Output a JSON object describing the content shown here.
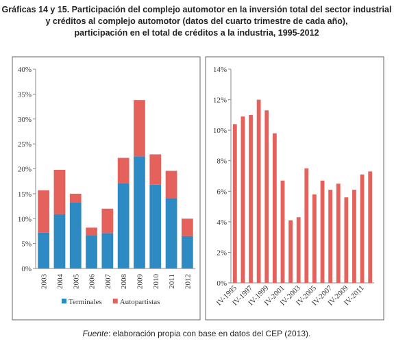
{
  "title": [
    "Gráficas 14 y 15. Participación del complejo automotor en la inversión total del sector industrial",
    "y créditos al complejo automotor (datos del cuarto trimestre de cada año),",
    "participación en el total de créditos a la industria, 1995-2012"
  ],
  "source_label": "Fuente",
  "source_text": ": elaboración propia con base en datos del CEP (2013).",
  "chart_data": [
    {
      "type": "stacked_bar",
      "categories": [
        "2003",
        "2004",
        "2005",
        "2006",
        "2007",
        "2008",
        "2009",
        "2010",
        "2011",
        "2012"
      ],
      "series": [
        {
          "name": "Terminales",
          "color": "#2d8ac2",
          "values": [
            7.2,
            10.9,
            13.3,
            6.6,
            7.1,
            17.1,
            22.5,
            16.8,
            14.1,
            6.5
          ]
        },
        {
          "name": "Autopartistas",
          "color": "#e5625c",
          "values": [
            8.5,
            8.9,
            1.7,
            1.6,
            4.9,
            5.1,
            11.3,
            6.1,
            5.5,
            3.5
          ]
        }
      ],
      "ylim": [
        0,
        40
      ],
      "yticks": [
        {
          "value": 0,
          "label": "0%"
        },
        {
          "value": 5,
          "label": "5%"
        },
        {
          "value": 10,
          "label": "10%"
        },
        {
          "value": 15,
          "label": "15%"
        },
        {
          "value": 20,
          "label": "20%"
        },
        {
          "value": 25,
          "label": "25%"
        },
        {
          "value": 30,
          "label": "30%"
        },
        {
          "value": 35,
          "label": "35%"
        },
        {
          "value": 40,
          "label": "40%"
        }
      ],
      "legend": "bottom"
    },
    {
      "type": "bar",
      "categories": [
        "IV-1995",
        null,
        "IV-1997",
        null,
        "IV-1999",
        null,
        "IV-2001",
        null,
        "IV-2003",
        null,
        "IV-2005",
        null,
        "IV-2007",
        null,
        "IV-2009",
        null,
        "IV-2011",
        null
      ],
      "values": [
        10.4,
        10.9,
        11.0,
        12.0,
        11.3,
        9.8,
        6.7,
        4.1,
        4.3,
        7.5,
        5.8,
        6.7,
        6.1,
        6.5,
        5.6,
        6.1,
        7.1,
        7.3
      ],
      "color": "#e5625c",
      "ylim": [
        0,
        14
      ],
      "yticks": [
        {
          "value": 0,
          "label": "0%"
        },
        {
          "value": 2,
          "label": "2%"
        },
        {
          "value": 4,
          "label": "4%"
        },
        {
          "value": 6,
          "label": "6%"
        },
        {
          "value": 8,
          "label": "8%"
        },
        {
          "value": 10,
          "label": "10%"
        },
        {
          "value": 12,
          "label": "12%"
        },
        {
          "value": 14,
          "label": "14%"
        }
      ]
    }
  ]
}
